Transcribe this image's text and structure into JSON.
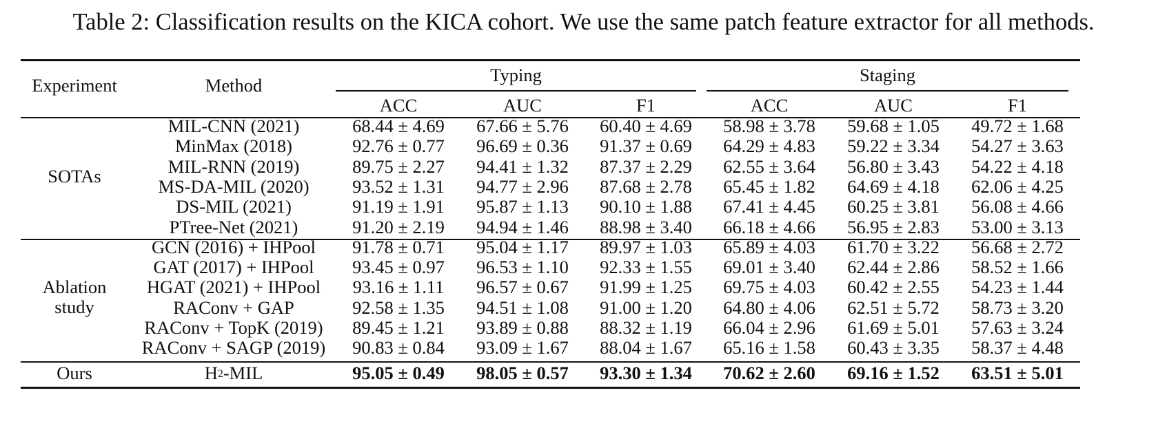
{
  "caption": "Table 2: Classification results on the KICA cohort. We use the same patch feature extractor for all methods.",
  "header": {
    "experiment": "Experiment",
    "method": "Method",
    "groups": [
      "Typing",
      "Staging"
    ],
    "metrics": [
      "ACC",
      "AUC",
      "F1",
      "ACC",
      "AUC",
      "F1"
    ]
  },
  "sections": [
    {
      "label_lines": [
        "SOTAs"
      ],
      "rows": [
        {
          "method": "MIL-CNN (2021)",
          "values": [
            "68.44 ± 4.69",
            "67.66 ± 5.76",
            "60.40 ± 4.69",
            "58.98 ± 3.78",
            "59.68 ± 1.05",
            "49.72 ± 1.68"
          ]
        },
        {
          "method": "MinMax (2018)",
          "values": [
            "92.76 ± 0.77",
            "96.69 ± 0.36",
            "91.37 ± 0.69",
            "64.29 ± 4.83",
            "59.22 ± 3.34",
            "54.27 ± 3.63"
          ]
        },
        {
          "method": "MIL-RNN (2019)",
          "values": [
            "89.75 ± 2.27",
            "94.41 ± 1.32",
            "87.37 ± 2.29",
            "62.55 ± 3.64",
            "56.80 ± 3.43",
            "54.22 ± 4.18"
          ]
        },
        {
          "method": "MS-DA-MIL (2020)",
          "values": [
            "93.52 ± 1.31",
            "94.77 ± 2.96",
            "87.68 ± 2.78",
            "65.45 ± 1.82",
            "64.69 ± 4.18",
            "62.06 ± 4.25"
          ]
        },
        {
          "method": "DS-MIL (2021)",
          "values": [
            "91.19 ± 1.91",
            "95.87 ± 1.13",
            "90.10 ± 1.88",
            "67.41 ± 4.45",
            "60.25 ± 3.81",
            "56.08 ± 4.66"
          ]
        },
        {
          "method": "PTree-Net (2021)",
          "values": [
            "91.20 ± 2.19",
            "94.94 ± 1.46",
            "88.98 ± 3.40",
            "66.18 ± 4.66",
            "56.95 ± 2.83",
            "53.00 ± 3.13"
          ]
        }
      ]
    },
    {
      "label_lines": [
        "Ablation",
        "study"
      ],
      "rows": [
        {
          "method": "GCN (2016) + IHPool",
          "values": [
            "91.78 ± 0.71",
            "95.04 ± 1.17",
            "89.97 ± 1.03",
            "65.89 ± 4.03",
            "61.70 ± 3.22",
            "56.68 ± 2.72"
          ]
        },
        {
          "method": "GAT (2017) + IHPool",
          "values": [
            "93.45 ± 0.97",
            "96.53 ± 1.10",
            "92.33 ± 1.55",
            "69.01 ± 3.40",
            "62.44 ± 2.86",
            "58.52 ± 1.66"
          ]
        },
        {
          "method": "HGAT (2021) + IHPool",
          "values": [
            "93.16 ± 1.11",
            "96.57 ± 0.67",
            "91.99 ± 1.25",
            "69.75 ± 4.03",
            "60.42 ± 2.55",
            "54.23 ± 1.44"
          ]
        },
        {
          "method": "RAConv + GAP",
          "values": [
            "92.58 ± 1.35",
            "94.51 ± 1.08",
            "91.00 ± 1.20",
            "64.80 ± 4.06",
            "62.51 ± 5.72",
            "58.73 ± 3.20"
          ]
        },
        {
          "method": "RAConv + TopK (2019)",
          "values": [
            "89.45 ± 1.21",
            "93.89 ± 0.88",
            "88.32 ± 1.19",
            "66.04 ± 2.96",
            "61.69 ± 5.01",
            "57.63 ± 3.24"
          ]
        },
        {
          "method": "RAConv + SAGP (2019)",
          "values": [
            "90.83 ± 0.84",
            "93.09 ± 1.67",
            "88.04 ± 1.67",
            "65.16 ± 1.58",
            "60.43 ± 3.35",
            "58.37 ± 4.48"
          ]
        }
      ]
    },
    {
      "label_lines": [
        "Ours"
      ],
      "rows": [
        {
          "method_base": "H",
          "method_sup": "2",
          "method_rest": "-MIL",
          "bold": true,
          "values": [
            "95.05 ± 0.49",
            "98.05 ± 0.57",
            "93.30 ± 1.34",
            "70.62 ± 2.60",
            "69.16 ± 1.52",
            "63.51 ± 5.01"
          ]
        }
      ]
    }
  ]
}
